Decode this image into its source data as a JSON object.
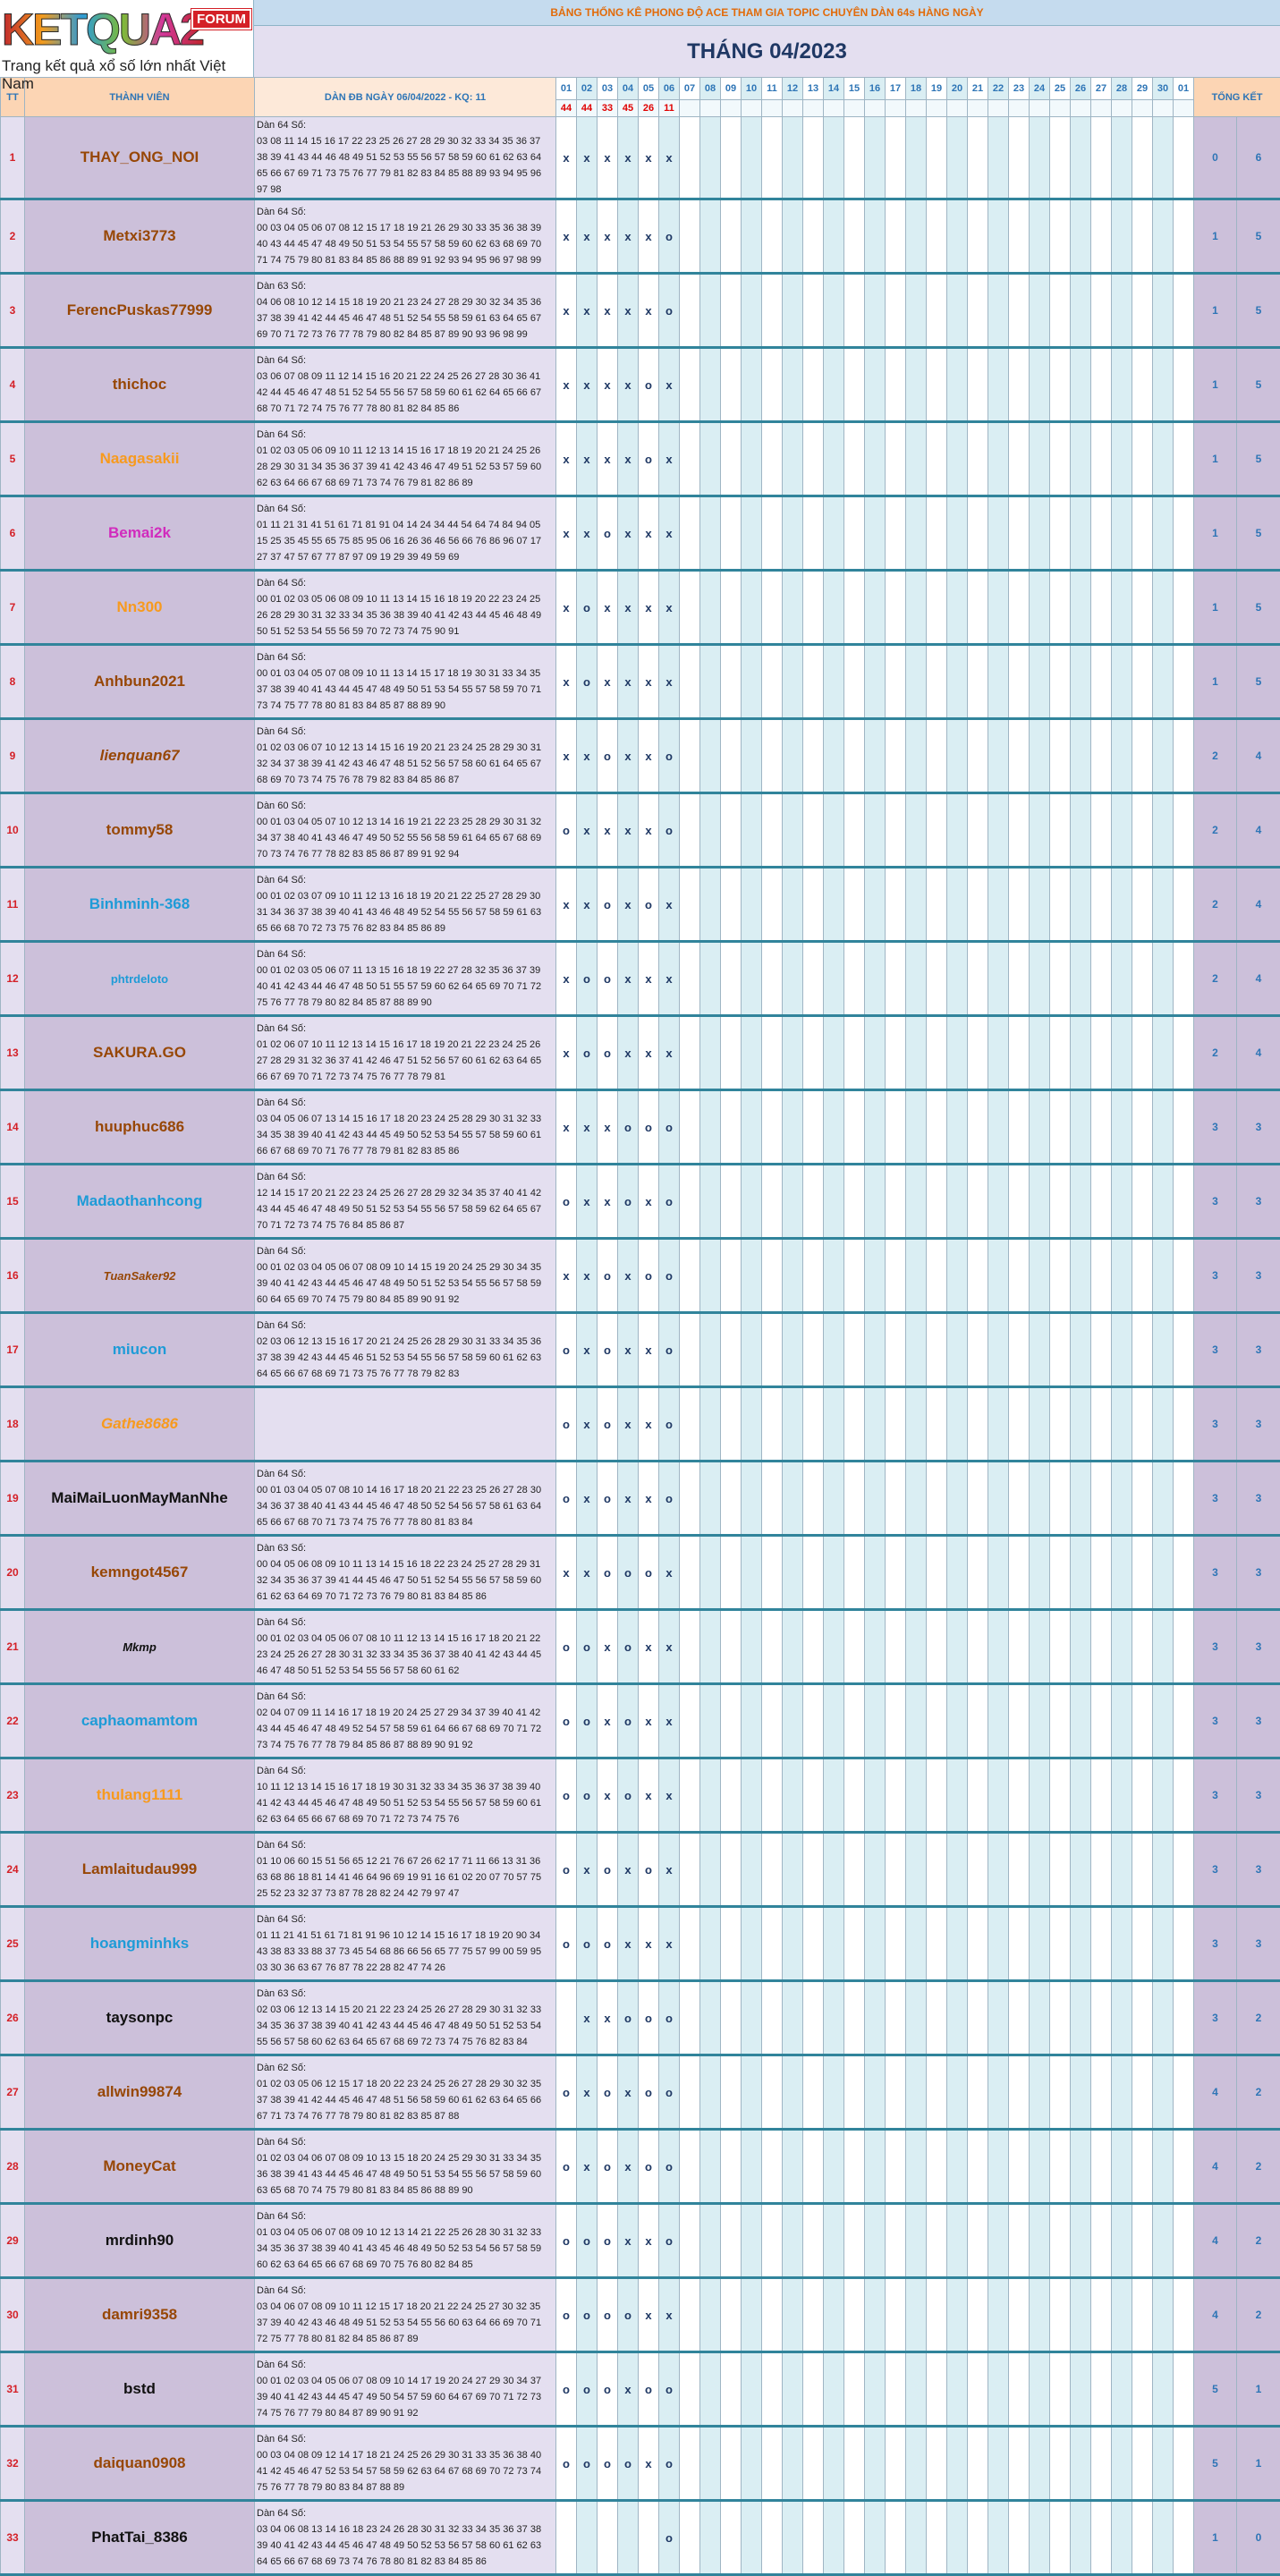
{
  "header": {
    "logo": "KETQUA2",
    "forum": "FORUM",
    "slogan": "Trang kết quả xổ số lớn nhất Việt Nam",
    "banner": "BẢNG THỐNG KÊ PHONG ĐỘ ACE THAM GIA TOPIC CHUYÊN DÀN 64s HÀNG NGÀY",
    "month": "THÁNG 04/2023"
  },
  "table": {
    "columns": {
      "tt": "TT",
      "member": "THÀNH VIÊN",
      "dan": "DÀN ĐB NGÀY 06/04/2022 - KQ: 11",
      "summary": "TỔNG KẾT",
      "days": [
        "01",
        "02",
        "03",
        "04",
        "05",
        "06",
        "07",
        "08",
        "09",
        "10",
        "11",
        "12",
        "13",
        "14",
        "15",
        "16",
        "17",
        "18",
        "19",
        "20",
        "21",
        "22",
        "23",
        "24",
        "25",
        "26",
        "27",
        "28",
        "29",
        "30",
        "01"
      ]
    },
    "results": [
      "44",
      "44",
      "33",
      "45",
      "26",
      "11"
    ],
    "rows": [
      {
        "tt": "1",
        "name": "THAY_ONG_NOI",
        "dan_label": "Dàn 64 Số:",
        "dan": "03 08 11 14 15 16 17 22 23 25 26 27 28 29 30 32 33 34 35 36 37 38 39 41 43 44 46 48 49 51 52 53 55 56 57 58 59 60 61 62 63 64 65 66 67 69 71 73 75 76 77 79 81 82 83 84 85 88 89 93 94 95 96 97 98",
        "marks": [
          "x",
          "x",
          "x",
          "x",
          "x",
          "x"
        ],
        "o": "0",
        "x": "6"
      },
      {
        "tt": "2",
        "name": "Metxi3773",
        "dan_label": "Dàn 64 Số:",
        "dan": "00 03 04 05 06 07 08 12 15 17 18 19 21 26 29 30 33 35 36 38 39 40 43 44 45 47 48 49 50 51 53 54 55 57 58 59 60 62 63 68 69 70 71 74 75 79 80 81 83 84 85 86 88 89 91 92 93 94 95 96 97 98 99",
        "marks": [
          "x",
          "x",
          "x",
          "x",
          "x",
          "o"
        ],
        "o": "1",
        "x": "5"
      },
      {
        "tt": "3",
        "name": "FerencPuskas77999",
        "dan_label": "Dàn 63 Số:",
        "dan": "04 06 08 10 12 14 15 18 19 20 21 23 24 27 28 29 30 32 34 35 36 37 38 39 41 42 44 45 46 47 48 51 52 54 55 58 59 61 63 64 65 67 69 70 71 72 73 76 77 78 79 80 82 84 85 87 89 90 93 96 98 99",
        "marks": [
          "x",
          "x",
          "x",
          "x",
          "x",
          "o"
        ],
        "o": "1",
        "x": "5"
      },
      {
        "tt": "4",
        "name": "thichoc",
        "dan_label": "Dàn 64 Số:",
        "dan": "03 06 07 08 09 11 12 14 15 16 20 21 22 24 25 26 27 28 30 36 41 42 44 45 46 47 48 51 52 54 55 56 57 58 59 60 61 62 64 65 66 67 68 70 71 72 74 75 76 77 78 80 81 82 84 85 86",
        "marks": [
          "x",
          "x",
          "x",
          "x",
          "o",
          "x"
        ],
        "o": "1",
        "x": "5"
      },
      {
        "tt": "5",
        "name": "Naagasakii",
        "dan_label": "Dàn 64 Số:",
        "dan": "01 02 03 05 06 09 10 11 12 13 14 15 16 17 18 19 20 21 24 25 26 28 29 30 31 34 35 36 37 39 41 42 43 46 47 49 51 52 53 57 59 60 62 63 64 66 67 68 69 71 73 74 76 79 81 82 86 89",
        "marks": [
          "x",
          "x",
          "x",
          "x",
          "o",
          "x"
        ],
        "o": "1",
        "x": "5"
      },
      {
        "tt": "6",
        "name": "Bemai2k",
        "dan_label": "Dàn 64 Số:",
        "dan": "01 11 21 31 41 51 61 71 81 91 04 14 24 34 44 54 64 74 84 94 05 15 25 35 45 55 65 75 85 95 06 16 26 36 46 56 66 76 86 96 07 17 27 37 47 57 67 77 87 97 09 19 29 39 49 59 69",
        "marks": [
          "x",
          "x",
          "o",
          "x",
          "x",
          "x"
        ],
        "o": "1",
        "x": "5"
      },
      {
        "tt": "7",
        "name": "Nn300",
        "dan_label": "Dàn 64 Số:",
        "dan": "00 01 02 03 05 06 08 09 10 11 13 14 15 16 18 19 20 22 23 24 25 26 28 29 30 31 32 33 34 35 36 38 39 40 41 42 43 44 45 46 48 49 50 51 52 53 54 55 56 59 70 72 73 74 75 90 91",
        "marks": [
          "x",
          "o",
          "x",
          "x",
          "x",
          "x"
        ],
        "o": "1",
        "x": "5"
      },
      {
        "tt": "8",
        "name": "Anhbun2021",
        "dan_label": "Dàn 64 Số:",
        "dan": "00 01 03 04 05 07 08 09 10 11 13 14 15 17 18 19 30 31 33 34 35 37 38 39 40 41 43 44 45 47 48 49 50 51 53 54 55 57 58 59 70 71 73 74 75 77 78 80 81 83 84 85 87 88 89 90",
        "marks": [
          "x",
          "o",
          "x",
          "x",
          "x",
          "x"
        ],
        "o": "1",
        "x": "5"
      },
      {
        "tt": "9",
        "name": "lienquan67",
        "dan_label": "Dàn 64 Số:",
        "dan": "01 02 03 06 07 10 12 13 14 15 16 19 20 21 23 24 25 28 29 30 31 32 34 37 38 39 41 42 43 46 47 48 51 52 56 57 58 60 61 64 65 67 68 69 70 73 74 75 76 78 79 82 83 84 85 86 87",
        "marks": [
          "x",
          "x",
          "o",
          "x",
          "x",
          "o"
        ],
        "o": "2",
        "x": "4"
      },
      {
        "tt": "10",
        "name": "tommy58",
        "dan_label": "Dàn 60 Số:",
        "dan": "00 01 03 04 05 07 10 12 13 14 16 19 21 22 23 25 28 29 30 31 32 34 37 38 40 41 43 46 47 49 50 52 55 56 58 59 61 64 65 67 68 69 70 73 74 76 77 78 82 83 85 86 87 89 91 92 94",
        "marks": [
          "o",
          "x",
          "x",
          "x",
          "x",
          "o"
        ],
        "o": "2",
        "x": "4"
      },
      {
        "tt": "11",
        "name": "Binhminh-368",
        "dan_label": "Dàn 64 Số:",
        "dan": "00 01 02 03 07 09 10 11 12 13 16 18 19 20 21 22 25 27 28 29 30 31 34 36 37 38 39 40 41 43 46 48 49 52 54 55 56 57 58 59 61 63 65 66 68 70 72 73 75 76 82 83 84 85 86 89",
        "marks": [
          "x",
          "x",
          "o",
          "x",
          "o",
          "x"
        ],
        "o": "2",
        "x": "4"
      },
      {
        "tt": "12",
        "name": "phtrdeloto",
        "dan_label": "Dàn 64 Số:",
        "dan": "00 01 02 03 05 06 07 11 13 15 16 18 19 22 27 28 32 35 36 37 39 40 41 42 43 44 46 47 48 50 51 55 57 59 60 62 64 65 69 70 71 72 75 76 77 78 79 80 82 84 85 87 88 89 90",
        "marks": [
          "x",
          "o",
          "o",
          "x",
          "x",
          "x"
        ],
        "o": "2",
        "x": "4"
      },
      {
        "tt": "13",
        "name": "SAKURA.GO",
        "dan_label": "Dàn 64 Số:",
        "dan": "01 02 06 07 10 11 12 13 14 15 16 17 18 19 20 21 22 23 24 25 26 27 28 29 31 32 36 37 41 42 46 47 51 52 56 57 60 61 62 63 64 65 66 67 69 70 71 72 73 74 75 76 77 78 79 81",
        "marks": [
          "x",
          "o",
          "o",
          "x",
          "x",
          "x"
        ],
        "o": "2",
        "x": "4"
      },
      {
        "tt": "14",
        "name": "huuphuc686",
        "dan_label": "Dàn 64 Số:",
        "dan": "03 04 05 06 07 13 14 15 16 17 18 20 23 24 25 28 29 30 31 32 33 34 35 38 39 40 41 42 43 44 45 49 50 52 53 54 55 57 58 59 60 61 66 67 68 69 70 71 76 77 78 79 81 82 83 85 86",
        "marks": [
          "x",
          "x",
          "x",
          "o",
          "o",
          "o"
        ],
        "o": "3",
        "x": "3"
      },
      {
        "tt": "15",
        "name": "Madaothanhcong",
        "dan_label": "Dàn 64 Số:",
        "dan": "12 14 15 17 20 21 22 23 24 25 26 27 28 29 32 34 35 37 40 41 42 43 44 45 46 47 48 49 50 51 52 53 54 55 56 57 58 59 62 64 65 67 70 71 72 73 74 75 76 84 85 86 87",
        "marks": [
          "o",
          "x",
          "x",
          "o",
          "x",
          "o"
        ],
        "o": "3",
        "x": "3"
      },
      {
        "tt": "16",
        "name": "TuanSaker92",
        "dan_label": "Dàn 64 Số:",
        "dan": "00 01 02 03 04 05 06 07 08 09 10 14 15 19 20 24 25 29 30 34 35 39 40 41 42 43 44 45 46 47 48 49 50 51 52 53 54 55 56 57 58 59 60 64 65 69 70 74 75 79 80 84 85 89 90 91 92",
        "marks": [
          "x",
          "x",
          "o",
          "x",
          "o",
          "o"
        ],
        "o": "3",
        "x": "3"
      },
      {
        "tt": "17",
        "name": "miucon",
        "dan_label": "Dàn 64 Số:",
        "dan": "02 03 06 12 13 15 16 17 20 21 24 25 26 28 29 30 31 33 34 35 36 37 38 39 42 43 44 45 46 51 52 53 54 55 56 57 58 59 60 61 62 63 64 65 66 67 68 69 71 73 75 76 77 78 79 82 83",
        "marks": [
          "o",
          "x",
          "o",
          "x",
          "x",
          "o"
        ],
        "o": "3",
        "x": "3"
      },
      {
        "tt": "18",
        "name": "Gathe8686",
        "marks": [
          "o",
          "x",
          "o",
          "x",
          "x",
          "o"
        ],
        "o": "3",
        "x": "3"
      },
      {
        "tt": "19",
        "name": "MaiMaiLuonMayManNhe",
        "dan_label": "Dàn 64 Số:",
        "dan": "00 01 03 04 05 07 08 10 14 16 17 18 20 21 22 23 25 26 27 28 30 34 36 37 38 40 41 43 44 45 46 47 48 50 52 54 56 57 58 61 63 64 65 66 67 68 70 71 73 74 75 76 77 78 80 81 83 84",
        "marks": [
          "o",
          "x",
          "o",
          "x",
          "x",
          "o"
        ],
        "o": "3",
        "x": "3"
      },
      {
        "tt": "20",
        "name": "kemngot4567",
        "dan_label": "Dàn 63 Số:",
        "dan": "00 04 05 06 08 09 10 11 13 14 15 16 18 22 23 24 25 27 28 29 31 32 34 35 36 37 39 41 44 45 46 47 50 51 52 54 55 56 57 58 59 60 61 62 63 64 69 70 71 72 73 76 79 80 81 83 84 85 86",
        "marks": [
          "x",
          "x",
          "o",
          "o",
          "o",
          "x"
        ],
        "o": "3",
        "x": "3"
      },
      {
        "tt": "21",
        "name": "Mkmp",
        "dan_label": "Dàn 64 Số:",
        "dan": "00 01 02 03 04 05 06 07 08 10 11 12 13 14 15 16 17 18 20 21 22 23 24 25 26 27 28 30 31 32 33 34 35 36 37 38 40 41 42 43 44 45 46 47 48 50 51 52 53 54 55 56 57 58 60 61 62",
        "marks": [
          "o",
          "o",
          "x",
          "o",
          "x",
          "x"
        ],
        "o": "3",
        "x": "3"
      },
      {
        "tt": "22",
        "name": "caphaomamtom",
        "dan_label": "Dàn 64 Số:",
        "dan": "02 04 07 09 11 14 16 17 18 19 20 24 25 27 29 34 37 39 40 41 42 43 44 45 46 47 48 49 52 54 57 58 59 61 64 66 67 68 69 70 71 72 73 74 75 76 77 78 79 84 85 86 87 88 89 90 91 92",
        "marks": [
          "o",
          "o",
          "x",
          "o",
          "x",
          "x"
        ],
        "o": "3",
        "x": "3"
      },
      {
        "tt": "23",
        "name": "thulang1111",
        "dan_label": "Dàn 64 Số:",
        "dan": "10 11 12 13 14 15 16 17 18 19 30 31 32 33 34 35 36 37 38 39 40 41 42 43 44 45 46 47 48 49 50 51 52 53 54 55 56 57 58 59 60 61 62 63 64 65 66 67 68 69 70 71 72 73 74 75 76",
        "marks": [
          "o",
          "o",
          "x",
          "o",
          "x",
          "x"
        ],
        "o": "3",
        "x": "3"
      },
      {
        "tt": "24",
        "name": "Lamlaitudau999",
        "dan_label": "Dàn 64 Số:",
        "dan": "01 10 06 60 15 51 56 65 12 21 76 67 26 62 17 71 11 66 13 31 36 63 68 86 18 81 14 41 46 64 96 69 19 91 16 61 02 20 07 70 57 75 25 52 23 32 37 73 87 78 28 82 24 42 79 97 47",
        "marks": [
          "o",
          "x",
          "o",
          "x",
          "o",
          "x"
        ],
        "o": "3",
        "x": "3"
      },
      {
        "tt": "25",
        "name": "hoangminhks",
        "dan_label": "Dàn 64 Số:",
        "dan": "01 11 21 41 51 61 71 81 91 96 10 12 14 15 16 17 18 19 20 90 34 43 38 83 33 88 37 73 45 54 68 86 66 56 65 77 75 57 99 00 59 95 03 30 36 63 67 76 87 78 22 28 82 47 74 26",
        "marks": [
          "o",
          "o",
          "o",
          "x",
          "x",
          "x"
        ],
        "o": "3",
        "x": "3"
      },
      {
        "tt": "26",
        "name": "taysonpc",
        "dan_label": "Dàn 63 Số:",
        "dan": "02 03 06 12 13 14 15 20 21 22 23 24 25 26 27 28 29 30 31 32 33 34 35 36 37 38 39 40 41 42 43 44 45 46 47 48 49 50 51 52 53 54 55 56 57 58 60 62 63 64 65 67 68 69 72 73 74 75 76 82 83 84",
        "marks": [
          null,
          "x",
          "x",
          "o",
          "o",
          "o"
        ],
        "o": "3",
        "x": "2"
      },
      {
        "tt": "27",
        "name": "allwin99874",
        "dan_label": "Dàn 62 Số:",
        "dan": "01 02 03 05 06 12 15 17 18 20 22 23 24 25 26 27 28 29 30 32 35 37 38 39 41 42 44 45 46 47 48 51 56 58 59 60 61 62 63 64 65 66 67 71 73 74 76 77 78 79 80 81 82 83 85 87 88",
        "marks": [
          "o",
          "x",
          "o",
          "x",
          "o",
          "o"
        ],
        "o": "4",
        "x": "2"
      },
      {
        "tt": "28",
        "name": "MoneyCat",
        "dan_label": "Dàn 64 Số:",
        "dan": "01 02 03 04 06 07 08 09 10 13 15 18 20 24 25 29 30 31 33 34 35 36 38 39 41 43 44 45 46 47 48 49 50 51 53 54 55 56 57 58 59 60 63 65 68 70 74 75 79 80 81 83 84 85 86 88 89 90",
        "marks": [
          "o",
          "x",
          "o",
          "x",
          "o",
          "o"
        ],
        "o": "4",
        "x": "2"
      },
      {
        "tt": "29",
        "name": "mrdinh90",
        "dan_label": "Dàn 64 Số:",
        "dan": "01 03 04 05 06 07 08 09 10 12 13 14 21 22 25 26 28 30 31 32 33 34 35 36 37 38 39 40 41 43 45 46 48 49 50 52 53 54 56 57 58 59 60 62 63 64 65 66 67 68 69 70 75 76 80 82 84 85",
        "marks": [
          "o",
          "o",
          "o",
          "x",
          "x",
          "o"
        ],
        "o": "4",
        "x": "2"
      },
      {
        "tt": "30",
        "name": "damri9358",
        "dan_label": "Dàn 64 Số:",
        "dan": "03 04 06 07 08 09 10 11 12 15 17 18 20 21 22 24 25 27 30 32 35 37 39 40 42 43 46 48 49 51 52 53 54 55 56 60 63 64 66 69 70 71 72 75 77 78 80 81 82 84 85 86 87 89",
        "marks": [
          "o",
          "o",
          "o",
          "o",
          "x",
          "x"
        ],
        "o": "4",
        "x": "2"
      },
      {
        "tt": "31",
        "name": "bstd",
        "dan_label": "Dàn 64 Số:",
        "dan": "00 01 02 03 04 05 06 07 08 09 10 14 17 19 20 24 27 29 30 34 37 39 40 41 42 43 44 45 47 49 50 54 57 59 60 64 67 69 70 71 72 73 74 75 76 77 79 80 84 87 89 90 91 92",
        "marks": [
          "o",
          "o",
          "o",
          "x",
          "o",
          "o"
        ],
        "o": "5",
        "x": "1"
      },
      {
        "tt": "32",
        "name": "daiquan0908",
        "dan_label": "Dàn 64 Số:",
        "dan": "00 03 04 08 09 12 14 17 18 21 24 25 26 29 30 31 33 35 36 38 40 41 42 45 46 47 52 53 54 57 58 59 62 63 64 67 68 69 70 72 73 74 75 76 77 78 79 80 83 84 87 88 89",
        "marks": [
          "o",
          "o",
          "o",
          "o",
          "x",
          "o"
        ],
        "o": "5",
        "x": "1"
      },
      {
        "tt": "33",
        "name": "PhatTai_8386",
        "dan_label": "Dàn 64 Số:",
        "dan": "03 04 06 08 13 14 16 18 23 24 26 28 30 31 32 33 34 35 36 37 38 39 40 41 42 43 44 45 46 47 48 49 50 52 53 56 57 58 60 61 62 63 64 65 66 67 68 69 73 74 76 78 80 81 82 83 84 85 86",
        "marks": [
          null,
          null,
          null,
          null,
          null,
          "o"
        ],
        "o": "1",
        "x": "0"
      }
    ]
  }
}
